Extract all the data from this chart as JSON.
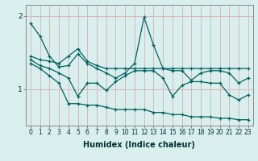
{
  "title": "",
  "xlabel": "Humidex (Indice chaleur)",
  "bg_color": "#d9efed",
  "line_color": "#006060",
  "grid_color": "#d8b8b8",
  "yticks": [
    1,
    2
  ],
  "xlim": [
    -0.5,
    23.5
  ],
  "ylim": [
    0.5,
    2.15
  ],
  "series": {
    "line1": [
      1.9,
      1.72,
      1.45,
      1.3,
      1.32,
      1.48,
      1.35,
      1.28,
      1.22,
      1.15,
      1.22,
      1.35,
      1.98,
      1.6,
      1.28,
      1.25,
      1.25,
      1.12,
      1.22,
      1.25,
      1.25,
      1.22,
      1.08,
      1.15
    ],
    "line2": [
      1.45,
      1.4,
      1.38,
      1.35,
      1.45,
      1.55,
      1.38,
      1.32,
      1.28,
      1.28,
      1.28,
      1.28,
      1.28,
      1.28,
      1.28,
      1.28,
      1.28,
      1.28,
      1.28,
      1.28,
      1.28,
      1.28,
      1.28,
      1.28
    ],
    "line3": [
      1.4,
      1.32,
      1.28,
      1.22,
      1.15,
      0.9,
      1.08,
      1.08,
      0.98,
      1.1,
      1.18,
      1.25,
      1.25,
      1.25,
      1.15,
      0.9,
      1.05,
      1.1,
      1.1,
      1.08,
      1.08,
      0.92,
      0.85,
      0.92
    ],
    "line4": [
      1.35,
      1.28,
      1.18,
      1.08,
      0.8,
      0.8,
      0.78,
      0.78,
      0.75,
      0.72,
      0.72,
      0.72,
      0.72,
      0.68,
      0.68,
      0.65,
      0.65,
      0.62,
      0.62,
      0.62,
      0.6,
      0.6,
      0.58,
      0.58
    ]
  },
  "xtick_fontsize": 5.5,
  "ytick_fontsize": 6.5,
  "xlabel_fontsize": 7
}
